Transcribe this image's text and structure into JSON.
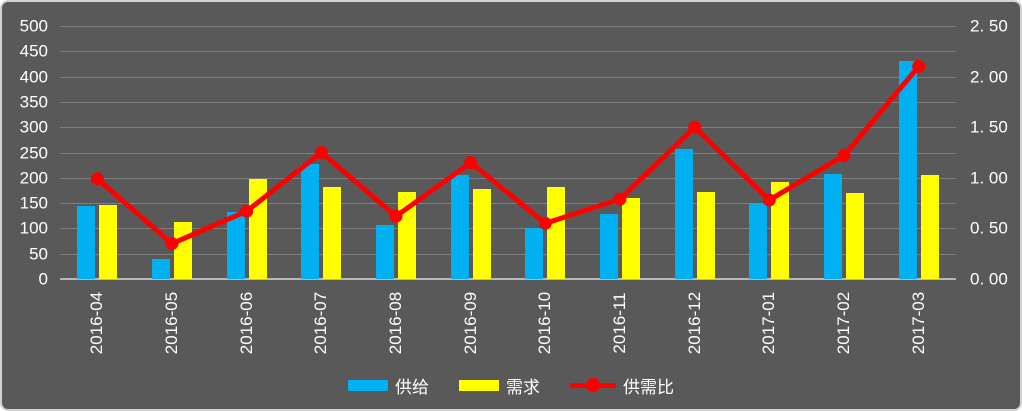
{
  "chart_data": {
    "type": "bar",
    "subtype": "combo-bar-line-dual-axis",
    "title": "",
    "categories": [
      "2016-04",
      "2016-05",
      "2016-06",
      "2016-07",
      "2016-08",
      "2016-09",
      "2016-10",
      "2016-11",
      "2016-12",
      "2017-01",
      "2017-02",
      "2017-03"
    ],
    "series": [
      {
        "name": "供给",
        "type": "bar",
        "axis": "left",
        "color": "#00B0F0",
        "values": [
          145,
          40,
          132,
          227,
          107,
          205,
          100,
          128,
          257,
          151,
          208,
          430
        ]
      },
      {
        "name": "需求",
        "type": "bar",
        "axis": "left",
        "color": "#FFFF00",
        "values": [
          147,
          113,
          198,
          182,
          172,
          178,
          182,
          161,
          171,
          192,
          170,
          205
        ]
      },
      {
        "name": "供需比",
        "type": "line",
        "axis": "right",
        "color": "#FF0000",
        "values": [
          0.99,
          0.35,
          0.67,
          1.25,
          0.62,
          1.15,
          0.55,
          0.79,
          1.5,
          0.78,
          1.22,
          2.1
        ]
      }
    ],
    "left_axis": {
      "min": 0,
      "max": 500,
      "step": 50,
      "tick_labels": [
        "500",
        "450",
        "400",
        "350",
        "300",
        "250",
        "200",
        "150",
        "100",
        "50",
        "0"
      ]
    },
    "right_axis": {
      "min": 0,
      "max": 2.5,
      "step": 0.5,
      "tick_labels": [
        "2. 50",
        "2. 00",
        "1. 50",
        "1. 00",
        "0. 50",
        "0. 00"
      ]
    },
    "grid": true,
    "legend_position": "bottom",
    "background_color": "#595959",
    "gridline_color": "#7e7e7e",
    "text_color": "#ffffff"
  }
}
